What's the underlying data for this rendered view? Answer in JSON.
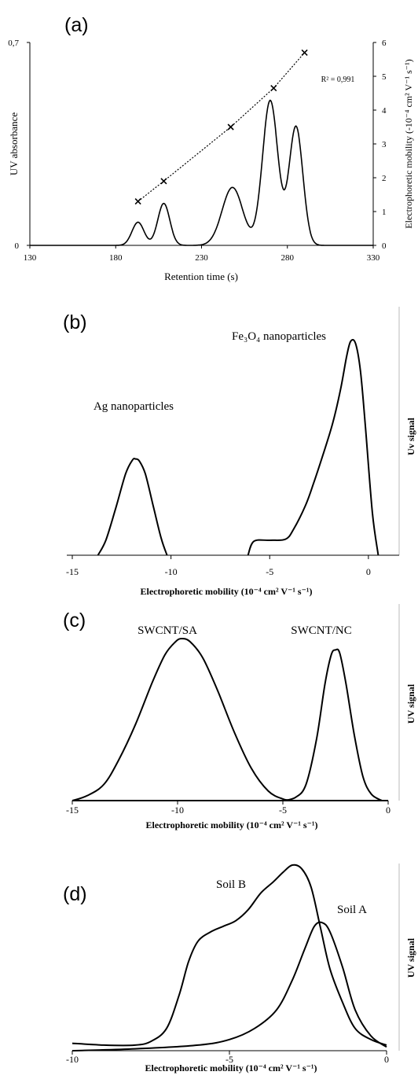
{
  "chart_data": [
    {
      "panel": "(a)",
      "type": "line",
      "xlabel": "Retention time (s)",
      "ylabel": "UV absorbance",
      "y2label": "Electrophoretic mobility (-10⁻⁴ cm² V⁻¹ s⁻¹)",
      "xlim": [
        130,
        330
      ],
      "ylim": [
        0,
        0.7
      ],
      "y2lim": [
        0,
        6
      ],
      "xticks": [
        "130",
        "180",
        "230",
        "280",
        "330"
      ],
      "yticks": [
        "0",
        "0,7"
      ],
      "y2ticks": [
        "0",
        "1",
        "2",
        "3",
        "4",
        "5",
        "6"
      ],
      "annotation": "R² = 0,991",
      "series": [
        {
          "style": "solid",
          "peaks": [
            {
              "center": 193,
              "height": 0.08,
              "width": 3.5
            },
            {
              "center": 208,
              "height": 0.145,
              "width": 3.5
            },
            {
              "center": 248,
              "height": 0.2,
              "width": 6.0
            },
            {
              "center": 270,
              "height": 0.5,
              "width": 4.5
            },
            {
              "center": 285,
              "height": 0.41,
              "width": 4.0
            }
          ]
        },
        {
          "style": "dotted",
          "markers": "x",
          "points": [
            {
              "x": 193,
              "y": 1.3
            },
            {
              "x": 208,
              "y": 1.9
            },
            {
              "x": 247,
              "y": 3.5
            },
            {
              "x": 272,
              "y": 4.65
            },
            {
              "x": 290,
              "y": 5.7
            }
          ]
        }
      ]
    },
    {
      "panel": "(b)",
      "type": "line",
      "xlabel": "Electrophoretic mobility (10⁻⁴ cm² V⁻¹ s⁻¹)",
      "ylabel": "Uv signal",
      "xlim": [
        -15,
        1
      ],
      "ylim": [
        0,
        1
      ],
      "xticks": [
        "-15",
        "-10",
        "-5",
        "0"
      ],
      "annotations": [
        "Ag nanoparticles",
        "Fe₃O₄ nanoparticles"
      ],
      "series": [
        {
          "points": [
            [
              -13.7,
              0
            ],
            [
              -13.3,
              0.07
            ],
            [
              -12.8,
              0.22
            ],
            [
              -12.3,
              0.38
            ],
            [
              -11.95,
              0.445
            ],
            [
              -11.8,
              0.45
            ],
            [
              -11.6,
              0.44
            ],
            [
              -11.3,
              0.38
            ],
            [
              -10.9,
              0.23
            ],
            [
              -10.5,
              0.08
            ],
            [
              -10.2,
              0
            ]
          ]
        },
        {
          "points": [
            [
              -6.1,
              0
            ],
            [
              -5.8,
              0.065
            ],
            [
              -5,
              0.07
            ],
            [
              -4.2,
              0.075
            ],
            [
              -3.8,
              0.12
            ],
            [
              -3.2,
              0.23
            ],
            [
              -2.8,
              0.33
            ],
            [
              -2.3,
              0.47
            ],
            [
              -1.8,
              0.62
            ],
            [
              -1.4,
              0.78
            ],
            [
              -1.1,
              0.93
            ],
            [
              -0.9,
              1.0
            ],
            [
              -0.65,
              0.99
            ],
            [
              -0.4,
              0.86
            ],
            [
              -0.15,
              0.6
            ],
            [
              0.2,
              0.2
            ],
            [
              0.5,
              0
            ]
          ]
        }
      ]
    },
    {
      "panel": "(c)",
      "type": "line",
      "xlabel": "Electrophoretic mobility (10⁻⁴ cm² V⁻¹ s⁻¹)",
      "ylabel": "UV signal",
      "xlim": [
        -15,
        0
      ],
      "ylim": [
        0,
        1
      ],
      "xticks": [
        "-15",
        "-10",
        "-5",
        "0"
      ],
      "annotations": [
        "SWCNT/SA",
        "SWCNT/NC"
      ],
      "series": [
        {
          "points": [
            [
              -15,
              0
            ],
            [
              -14.3,
              0.03
            ],
            [
              -13.5,
              0.1
            ],
            [
              -12.8,
              0.25
            ],
            [
              -12,
              0.47
            ],
            [
              -11.2,
              0.73
            ],
            [
              -10.6,
              0.9
            ],
            [
              -10.1,
              0.98
            ],
            [
              -9.8,
              1.0
            ],
            [
              -9.4,
              0.98
            ],
            [
              -8.8,
              0.88
            ],
            [
              -8.1,
              0.68
            ],
            [
              -7.3,
              0.42
            ],
            [
              -6.5,
              0.2
            ],
            [
              -5.7,
              0.06
            ],
            [
              -5,
              0.01
            ],
            [
              -4.5,
              0
            ]
          ]
        },
        {
          "points": [
            [
              -5,
              0
            ],
            [
              -4.4,
              0.02
            ],
            [
              -3.9,
              0.1
            ],
            [
              -3.4,
              0.38
            ],
            [
              -3,
              0.72
            ],
            [
              -2.7,
              0.9
            ],
            [
              -2.5,
              0.93
            ],
            [
              -2.3,
              0.91
            ],
            [
              -2,
              0.72
            ],
            [
              -1.6,
              0.4
            ],
            [
              -1.2,
              0.15
            ],
            [
              -0.8,
              0.04
            ],
            [
              -0.3,
              0
            ]
          ]
        },
        {
          "points": [
            [
              -15,
              0
            ],
            [
              0,
              0
            ]
          ]
        }
      ]
    },
    {
      "panel": "(d)",
      "type": "line",
      "xlabel": "Electrophoretic mobility (10⁻⁴ cm² V⁻¹ s⁻¹)",
      "ylabel": "UV signal",
      "xlim": [
        -10,
        0
      ],
      "ylim": [
        0,
        1
      ],
      "xticks": [
        "-10",
        "-5",
        "0"
      ],
      "annotations": [
        "Soil B",
        "Soil A"
      ],
      "series": [
        {
          "name": "Soil B",
          "points": [
            [
              -10,
              0.04
            ],
            [
              -9,
              0.03
            ],
            [
              -8,
              0.03
            ],
            [
              -7.5,
              0.05
            ],
            [
              -7,
              0.12
            ],
            [
              -6.6,
              0.3
            ],
            [
              -6.3,
              0.48
            ],
            [
              -6,
              0.59
            ],
            [
              -5.6,
              0.64
            ],
            [
              -5.2,
              0.67
            ],
            [
              -4.8,
              0.7
            ],
            [
              -4.4,
              0.76
            ],
            [
              -4,
              0.85
            ],
            [
              -3.6,
              0.91
            ],
            [
              -3.3,
              0.96
            ],
            [
              -3.0,
              1.0
            ],
            [
              -2.7,
              0.98
            ],
            [
              -2.4,
              0.88
            ],
            [
              -2.1,
              0.66
            ],
            [
              -1.8,
              0.44
            ],
            [
              -1.4,
              0.26
            ],
            [
              -1,
              0.12
            ],
            [
              -0.5,
              0.06
            ],
            [
              0,
              0.03
            ]
          ]
        },
        {
          "name": "Soil A",
          "points": [
            [
              -10,
              0
            ],
            [
              -8,
              0.01
            ],
            [
              -6,
              0.03
            ],
            [
              -5,
              0.06
            ],
            [
              -4.2,
              0.12
            ],
            [
              -3.5,
              0.22
            ],
            [
              -3.0,
              0.38
            ],
            [
              -2.6,
              0.55
            ],
            [
              -2.3,
              0.67
            ],
            [
              -2.05,
              0.69
            ],
            [
              -1.8,
              0.64
            ],
            [
              -1.4,
              0.45
            ],
            [
              -1,
              0.22
            ],
            [
              -0.5,
              0.08
            ],
            [
              0,
              0.02
            ]
          ]
        }
      ]
    }
  ]
}
